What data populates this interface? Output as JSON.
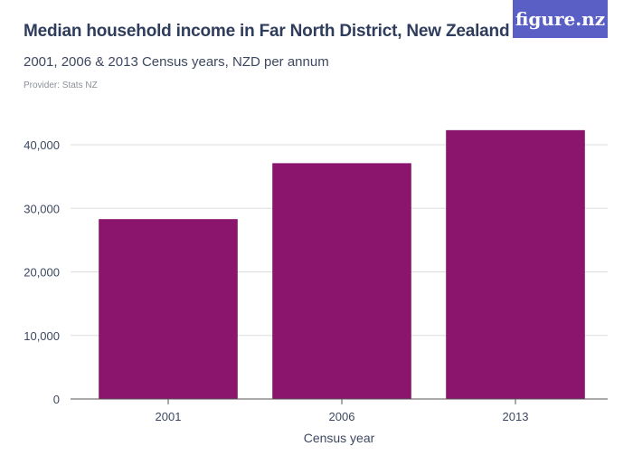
{
  "header": {
    "title": "Median household income in Far North District, New Zealand",
    "subtitle": "2001, 2006 & 2013 Census years, NZD per annum",
    "provider": "Provider: Stats NZ",
    "logo_text": "figure.nz"
  },
  "colors": {
    "bar": "#8b156d",
    "grid": "#dddddd",
    "axis": "#555555",
    "logo_bg": "#5a5fc6"
  },
  "chart_data": {
    "type": "bar",
    "categories": [
      "2001",
      "2006",
      "2013"
    ],
    "values": [
      28300,
      37100,
      42300
    ],
    "title": "Median household income in Far North District, New Zealand",
    "subtitle": "2001, 2006 & 2013 Census years, NZD per annum",
    "xlabel": "Census year",
    "ylabel": "",
    "ylim": [
      0,
      40000
    ],
    "yticks": [
      0,
      10000,
      20000,
      30000,
      40000
    ],
    "ytick_labels": [
      "0",
      "10,000",
      "20,000",
      "30,000",
      "40,000"
    ],
    "grid": true,
    "legend": "none"
  }
}
